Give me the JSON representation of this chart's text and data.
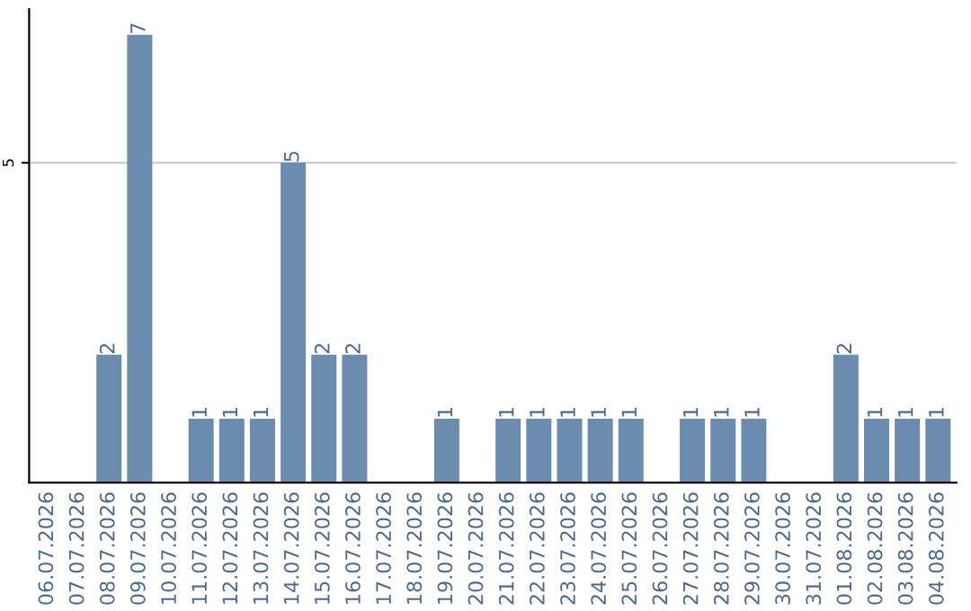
{
  "chart_data": {
    "type": "bar",
    "categories": [
      "06.07.2026",
      "07.07.2026",
      "08.07.2026",
      "09.07.2026",
      "10.07.2026",
      "11.07.2026",
      "12.07.2026",
      "13.07.2026",
      "14.07.2026",
      "15.07.2026",
      "16.07.2026",
      "17.07.2026",
      "18.07.2026",
      "19.07.2026",
      "20.07.2026",
      "21.07.2026",
      "22.07.2026",
      "23.07.2026",
      "24.07.2026",
      "25.07.2026",
      "26.07.2026",
      "27.07.2026",
      "28.07.2026",
      "29.07.2026",
      "30.07.2026",
      "31.07.2026",
      "01.08.2026",
      "02.08.2026",
      "03.08.2026",
      "04.08.2026"
    ],
    "values": [
      0,
      0,
      2,
      7,
      0,
      1,
      1,
      1,
      5,
      2,
      2,
      0,
      0,
      1,
      0,
      1,
      1,
      1,
      1,
      1,
      0,
      1,
      1,
      1,
      0,
      0,
      2,
      1,
      1,
      1
    ],
    "value_labels": [
      null,
      null,
      "2",
      "7",
      null,
      "1",
      "1",
      "1",
      "5",
      "2",
      "2",
      null,
      null,
      "1",
      null,
      "1",
      "1",
      "1",
      "1",
      "1",
      null,
      "1",
      "1",
      "1",
      null,
      null,
      "2",
      "1",
      "1",
      "1"
    ],
    "color": "#6a8caf",
    "ylim": [
      0,
      7.4
    ],
    "yticks": [
      5
    ],
    "grid": "y"
  }
}
